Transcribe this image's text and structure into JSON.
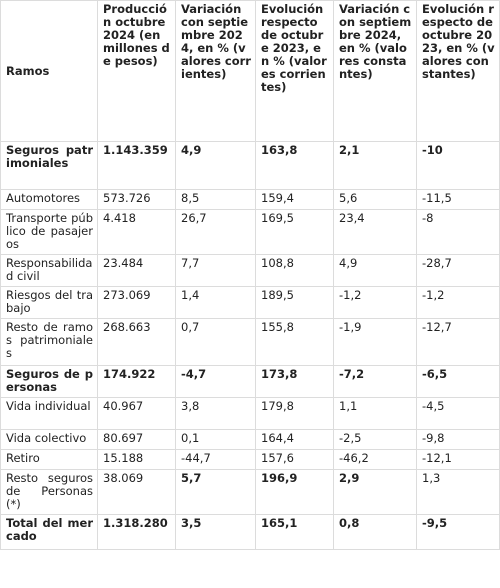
{
  "headers": [
    "Ramos",
    "Producción octubre 2024 (en millones de pesos)",
    "Variación con septiembre 2024, en % (valores corrientes)",
    "Evolución respecto de octubre 2023, en % (valores corrientes)",
    "Variación con septiembre 2024, en % (valores constantes)",
    "Evolución respecto de octubre 2023, en % (valores constantes)"
  ],
  "rows": [
    [
      "Seguros patrimoniales",
      "1.143.359",
      "4,9",
      "163,8",
      "2,1",
      "-10"
    ],
    [
      "Automotores",
      "573.726",
      "8,5",
      "159,4",
      "5,6",
      "-11,5"
    ],
    [
      "Transporte público de pasajeros",
      "4.418",
      "26,7",
      "169,5",
      "23,4",
      "-8"
    ],
    [
      "Responsabilidad civil",
      "23.484",
      "7,7",
      "108,8",
      "4,9",
      "-28,7"
    ],
    [
      "Riesgos del trabajo",
      "273.069",
      "1,4",
      "189,5",
      "-1,2",
      "-1,2"
    ],
    [
      "Resto de ramos patrimoniales",
      "268.663",
      "0,7",
      "155,8",
      "-1,9",
      "-12,7"
    ],
    [
      "Seguros de personas",
      "174.922",
      "-4,7",
      "173,8",
      "-7,2",
      "-6,5"
    ],
    [
      "Vida individual",
      "40.967",
      "3,8",
      "179,8",
      "1,1",
      "-4,5"
    ],
    [
      "Vida colectivo",
      "80.697",
      "0,1",
      "164,4",
      "-2,5",
      "-9,8"
    ],
    [
      "Retiro",
      "15.188",
      "-44,7",
      "157,6",
      "-46,2",
      "-12,1"
    ],
    [
      "Resto seguros de Personas (*)",
      "38.069",
      "5,7",
      "196,9",
      "2,9",
      "1,3"
    ],
    [
      "Total del mercado",
      "1.318.280",
      "3,5",
      "165,1",
      "0,8",
      "-9,5"
    ]
  ]
}
